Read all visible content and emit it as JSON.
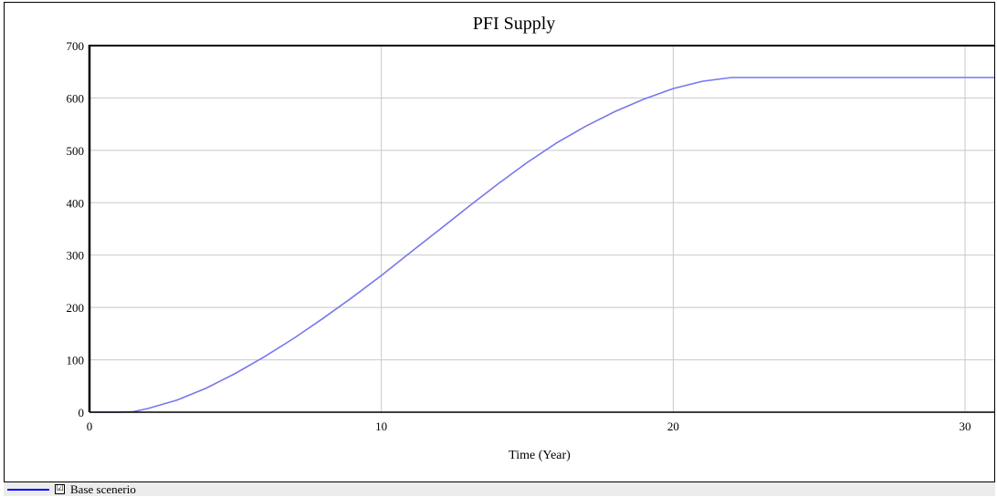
{
  "chart_data": {
    "type": "line",
    "title": "PFI Supply",
    "xlabel": "Time (Year)",
    "ylabel": "",
    "xlim": [
      0,
      31
    ],
    "ylim": [
      0,
      700
    ],
    "x_ticks": [
      0,
      10,
      20,
      30
    ],
    "y_ticks": [
      0,
      100,
      200,
      300,
      400,
      500,
      600,
      700
    ],
    "grid": true,
    "series": [
      {
        "name": "Base scenerio",
        "color": "#7777ee",
        "x": [
          0,
          1,
          1.5,
          2,
          3,
          4,
          5,
          6,
          7,
          8,
          9,
          10,
          11,
          12,
          13,
          14,
          15,
          16,
          17,
          18,
          19,
          20,
          21,
          22,
          23,
          24,
          25,
          26,
          27,
          28,
          29,
          30,
          31
        ],
        "y": [
          0,
          0,
          1,
          7,
          23,
          46,
          74,
          106,
          141,
          179,
          219,
          261,
          305,
          349,
          393,
          436,
          477,
          514,
          546,
          574,
          598,
          618,
          632,
          639,
          639,
          639,
          639,
          639,
          639,
          639,
          639,
          639,
          639
        ]
      }
    ]
  },
  "legend": {
    "checkbox_mark": "☑",
    "label": "Base scenerio"
  }
}
